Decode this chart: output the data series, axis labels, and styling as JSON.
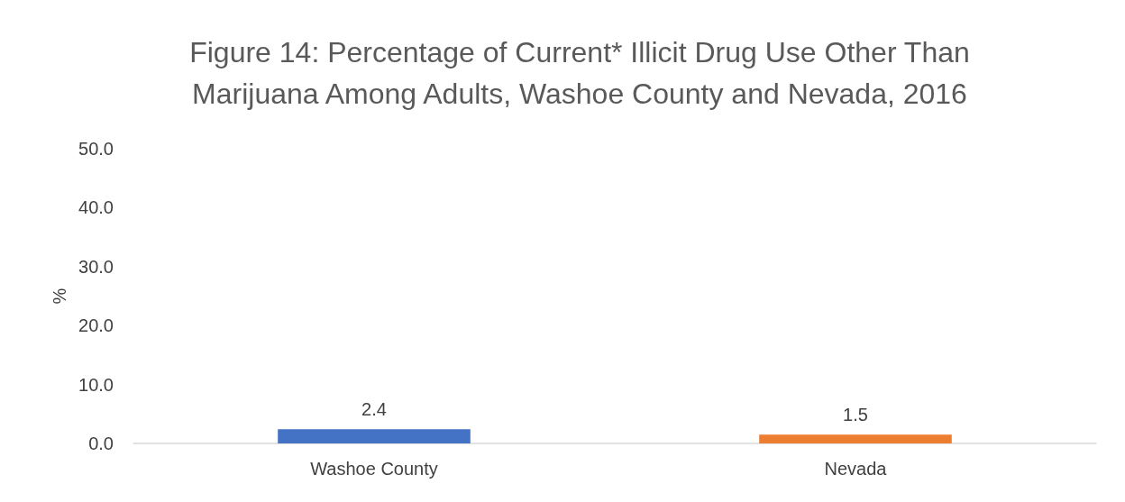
{
  "chart_data": {
    "type": "bar",
    "title": "Figure 14: Percentage of Current* Illicit Drug Use Other Than\nMarijuana Among Adults, Washoe County and Nevada, 2016",
    "ylabel": "%",
    "categories": [
      "Washoe County",
      "Nevada"
    ],
    "values": [
      2.4,
      1.5
    ],
    "colors": [
      "#4472c4",
      "#ed7d31"
    ],
    "ylim": [
      0,
      50
    ],
    "yticks": [
      {
        "value": 0,
        "label": "0.0"
      },
      {
        "value": 10,
        "label": "10.0"
      },
      {
        "value": 20,
        "label": "20.0"
      },
      {
        "value": 30,
        "label": "30.0"
      },
      {
        "value": 40,
        "label": "40.0"
      },
      {
        "value": 50,
        "label": "50.0"
      }
    ],
    "data_labels": true,
    "grid": false
  }
}
